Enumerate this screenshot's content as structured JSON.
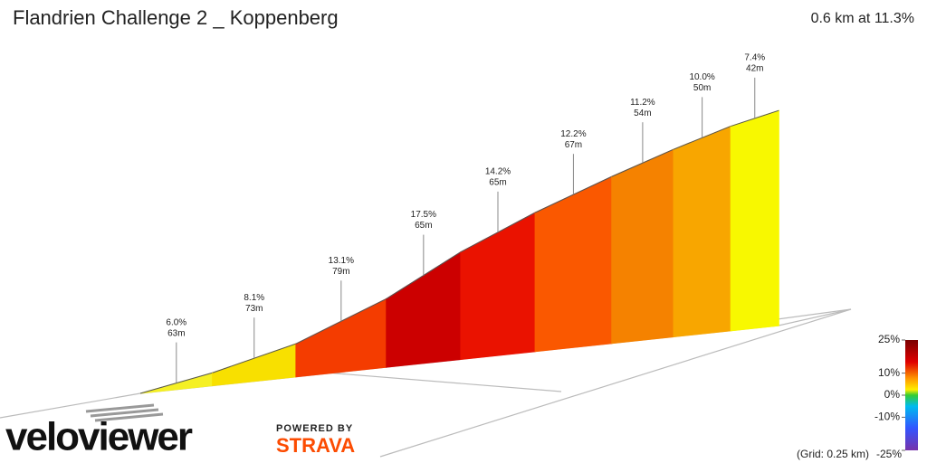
{
  "chart_data": {
    "type": "profile",
    "title": "Flandrien Challenge 2 _ Koppenberg",
    "subtitle": "0.6 km at 11.3%",
    "values": [
      6.0,
      8.1,
      13.1,
      17.5,
      14.2,
      12.2,
      11.2,
      10.0,
      7.4
    ],
    "value_labels": [
      "6.0%",
      "8.1%",
      "13.1%",
      "17.5%",
      "14.2%",
      "12.2%",
      "11.2%",
      "10.0%",
      "7.4%"
    ],
    "lengths": [
      63,
      73,
      79,
      65,
      65,
      67,
      54,
      50,
      42
    ],
    "length_labels": [
      "63m",
      "73m",
      "79m",
      "65m",
      "65m",
      "67m",
      "54m",
      "50m",
      "42m"
    ],
    "colors": [
      "#f5f024",
      "#f8e000",
      "#f43c00",
      "#cc0000",
      "#ea1200",
      "#fa5800",
      "#f58200",
      "#f8a600",
      "#f8f800"
    ],
    "colorbar_ticks": [
      {
        "value": 25,
        "label": "25%"
      },
      {
        "value": 10,
        "label": "10%"
      },
      {
        "value": 0,
        "label": "0%"
      },
      {
        "value": -10,
        "label": "-10%"
      },
      {
        "value": -25,
        "label": "-25%"
      }
    ],
    "grid_note": "(Grid: 0.25 km)",
    "brand": "veloviewer",
    "powered_by": "POWERED BY",
    "partner": "STRAVA"
  }
}
